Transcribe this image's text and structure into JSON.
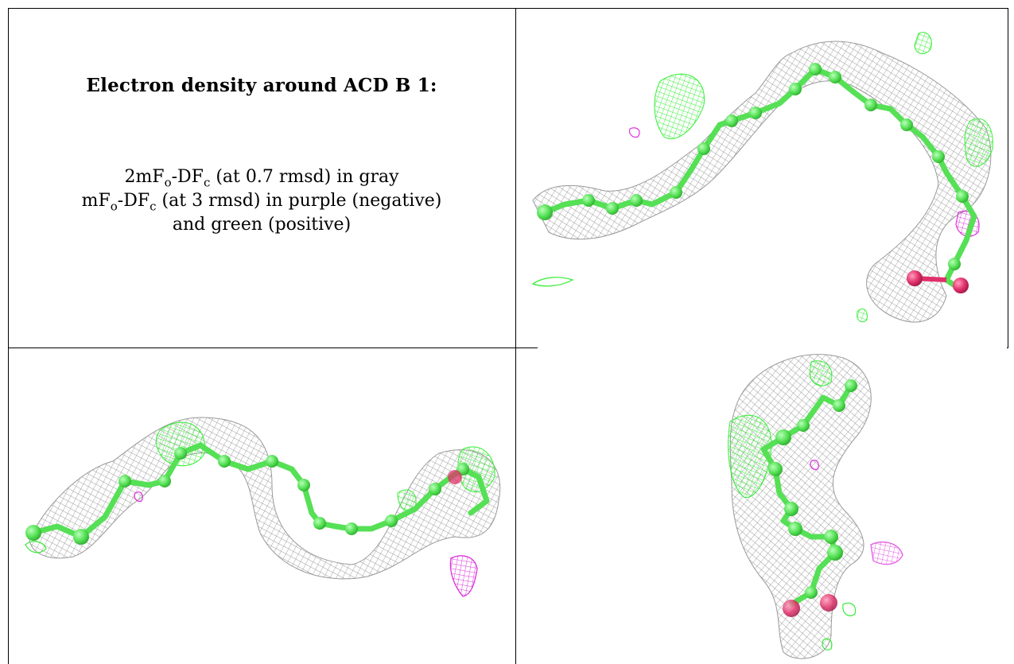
{
  "caption": {
    "title": "Electron density around ACD B 1:",
    "line1": {
      "pre": "2mF",
      "sub1": "o",
      "mid": "-DF",
      "sub2": "c",
      "post": " (at 0.7 rmsd) in gray"
    },
    "line2": {
      "pre": "mF",
      "sub1": "o",
      "mid": "-DF",
      "sub2": "c",
      "post": " (at 3 rmsd) in purple (negative)"
    },
    "line3": "and green (positive)"
  },
  "colors": {
    "mesh_gray": "#9a9a9a",
    "mesh_positive": "#33ee33",
    "mesh_negative": "#dd33dd",
    "carbon_atom": "#55e055",
    "oxygen_atom": "#e0306a"
  }
}
